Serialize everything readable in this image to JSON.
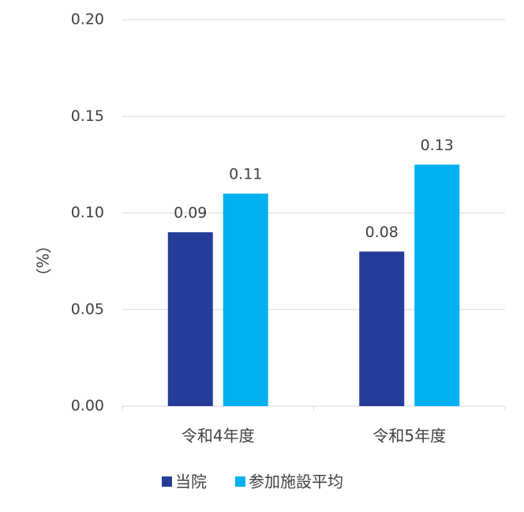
{
  "chart_data": {
    "type": "bar",
    "y_label": "（%）",
    "categories": [
      "令和4年度",
      "令和5年度"
    ],
    "series": [
      {
        "name": "当院",
        "color": "#253d98",
        "values": [
          0.09,
          0.08
        ]
      },
      {
        "name": "参加施設平均",
        "color": "#00b0f0",
        "values": [
          0.11,
          0.125
        ],
        "value_labels": [
          "0.11",
          "0.13"
        ]
      }
    ],
    "ylim": [
      0,
      0.2
    ],
    "yticks": [
      {
        "value": 0,
        "label": "0.00"
      },
      {
        "value": 0.05,
        "label": "0.05"
      },
      {
        "value": 0.1,
        "label": "0.10"
      },
      {
        "value": 0.15,
        "label": "0.15"
      },
      {
        "value": 0.2,
        "label": "0.20"
      }
    ],
    "grid": true,
    "legend": "bottom"
  }
}
